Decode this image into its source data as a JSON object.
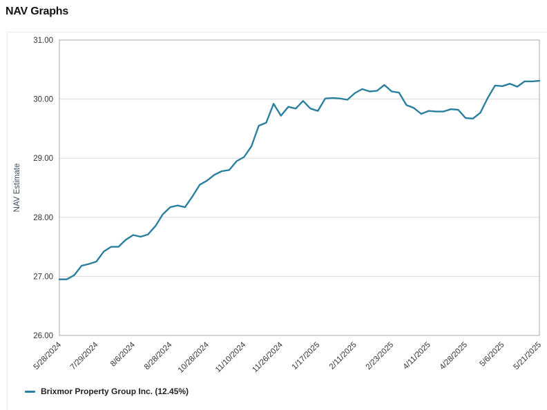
{
  "page": {
    "title": "NAV Graphs"
  },
  "legend": {
    "items": [
      {
        "label": "Brixmor Property Group Inc. (12.45%)",
        "color": "#2a7f9e"
      }
    ]
  },
  "colors": {
    "line": "#2a7f9e",
    "grid": "#d9d9d9",
    "plot_border": "#a8a8a8",
    "card_border": "#e9e9e9",
    "axis_text": "#333333",
    "axis_title": "#3f4d5c"
  },
  "chart_data": {
    "type": "line",
    "title": "NAV Graphs",
    "xlabel": "",
    "ylabel": "NAV Estimate",
    "ylim": [
      26,
      31
    ],
    "y_ticks": [
      31,
      30,
      29,
      28,
      27,
      26
    ],
    "grid": "horizontal",
    "legend_position": "bottom-left",
    "x_tick_labels": [
      "5/28/2024",
      "7/29/2024",
      "8/6/2024",
      "8/28/2024",
      "10/28/2024",
      "11/10/2024",
      "11/26/2024",
      "1/17/2025",
      "2/11/2025",
      "2/23/2025",
      "4/11/2025",
      "4/28/2025",
      "5/6/2025",
      "5/21/2025"
    ],
    "x_tick_indices": [
      0,
      5,
      10,
      15,
      20,
      25,
      30,
      35,
      40,
      45,
      50,
      55,
      60,
      65
    ],
    "series": [
      {
        "name": "Brixmor Property Group Inc. (12.45%)",
        "color": "#2a7f9e",
        "values": [
          26.95,
          26.95,
          27.02,
          27.18,
          27.21,
          27.25,
          27.42,
          27.5,
          27.5,
          27.62,
          27.7,
          27.67,
          27.71,
          27.85,
          28.05,
          28.17,
          28.2,
          28.17,
          28.35,
          28.55,
          28.62,
          28.72,
          28.78,
          28.8,
          28.95,
          29.02,
          29.2,
          29.55,
          29.6,
          29.92,
          29.72,
          29.87,
          29.84,
          29.97,
          29.84,
          29.8,
          30.01,
          30.02,
          30.01,
          29.99,
          30.1,
          30.17,
          30.13,
          30.14,
          30.24,
          30.13,
          30.11,
          29.9,
          29.85,
          29.75,
          29.8,
          29.79,
          29.79,
          29.83,
          29.82,
          29.68,
          29.67,
          29.77,
          30.02,
          30.23,
          30.22,
          30.26,
          30.21,
          30.3,
          30.3,
          30.31
        ]
      }
    ]
  }
}
